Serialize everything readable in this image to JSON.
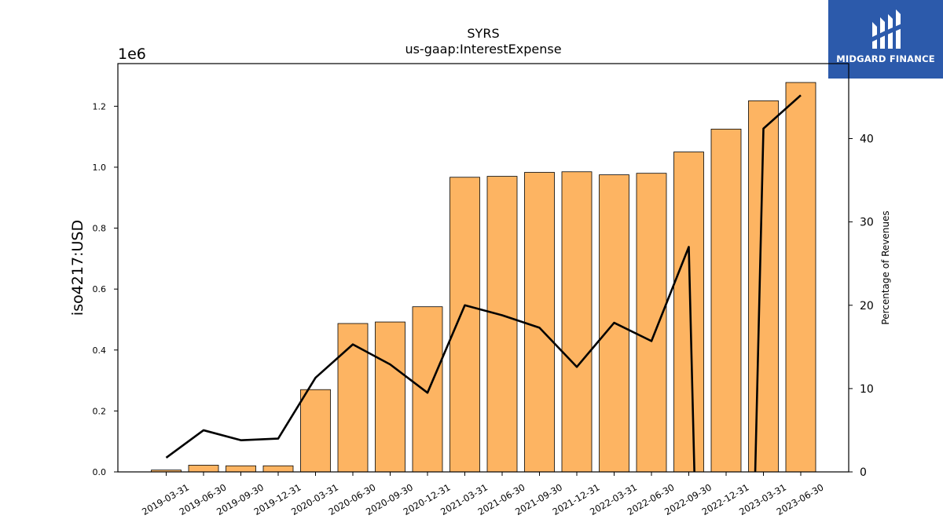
{
  "logo": {
    "text": "MIDGARD FINANCE",
    "bg_color": "#2c5aab"
  },
  "chart_data": {
    "type": "bar",
    "title": "SYRS",
    "subtitle": "us-gaap:InterestExpense",
    "ylabel": "iso4217:USD",
    "y_offset_label": "1e6",
    "y2label": "Percentage of Revenues",
    "categories": [
      "2019-03-31",
      "2019-06-30",
      "2019-09-30",
      "2019-12-31",
      "2020-03-31",
      "2020-06-30",
      "2020-09-30",
      "2020-12-31",
      "2021-03-31",
      "2021-06-30",
      "2021-09-30",
      "2021-12-31",
      "2022-03-31",
      "2022-06-30",
      "2022-09-30",
      "2022-12-31",
      "2023-03-31",
      "2023-06-30"
    ],
    "ylim": [
      0,
      1340000
    ],
    "y_ticks": [
      0,
      200000,
      400000,
      600000,
      800000,
      1000000,
      1200000
    ],
    "y_tick_labels": [
      "0.0",
      "0.2",
      "0.4",
      "0.6",
      "0.8",
      "1.0",
      "1.2"
    ],
    "y2lim": [
      0,
      49
    ],
    "y2_ticks": [
      0,
      10,
      20,
      30,
      40
    ],
    "y2_tick_labels": [
      "0",
      "10",
      "20",
      "30",
      "40"
    ],
    "series": [
      {
        "type": "bar",
        "axis": "left",
        "values": [
          6000,
          22000,
          20000,
          20000,
          270000,
          487000,
          492000,
          542000,
          967000,
          970000,
          983000,
          985000,
          975000,
          980000,
          1050000,
          1125000,
          1218000,
          1278000
        ],
        "color": "#fdb462"
      },
      {
        "type": "line",
        "axis": "right",
        "values": [
          1.7,
          5.0,
          3.8,
          4.0,
          11.3,
          15.3,
          12.9,
          9.5,
          20.0,
          18.8,
          17.3,
          12.6,
          17.9,
          15.7,
          27.0,
          null,
          41.2,
          45.2
        ],
        "color": "#000000"
      }
    ],
    "grid": false,
    "legend": "none"
  }
}
